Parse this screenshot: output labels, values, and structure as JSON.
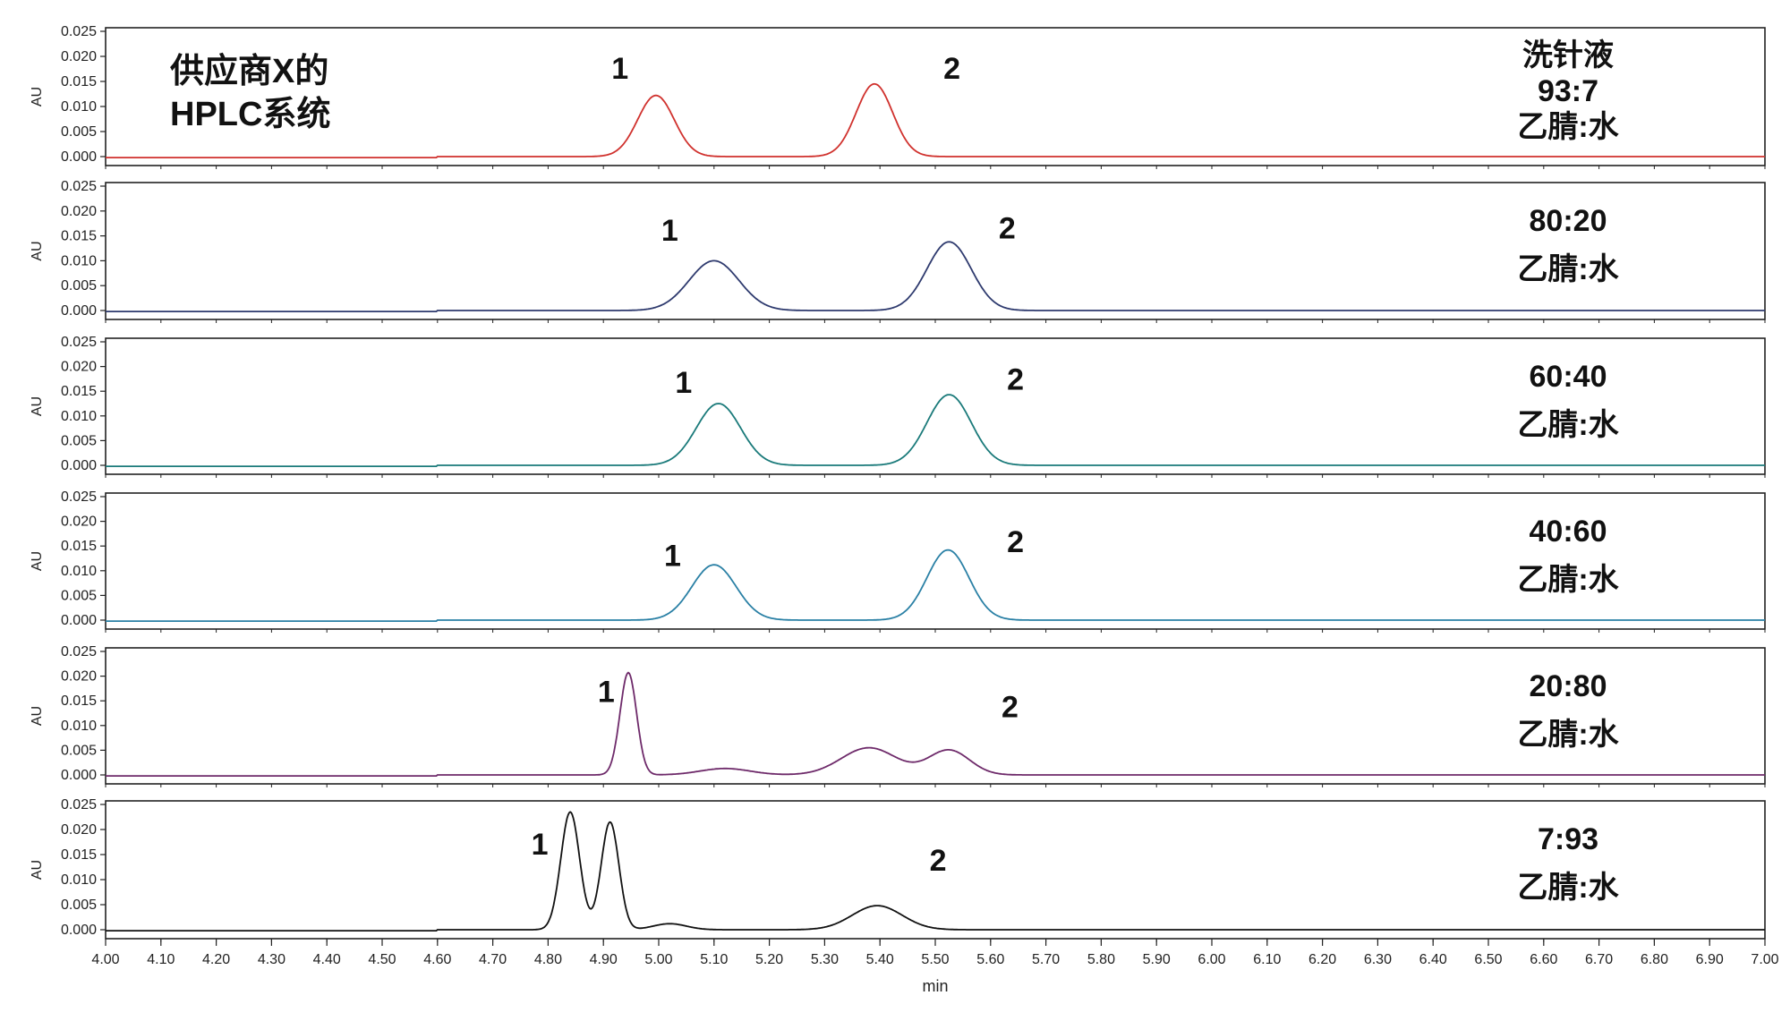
{
  "chart_data": {
    "type": "line",
    "xlabel": "min",
    "ylabel": "AU",
    "xlim": [
      4.0,
      7.0
    ],
    "ylim": [
      -0.001,
      0.025
    ],
    "x_ticks": [
      "4.00",
      "4.10",
      "4.20",
      "4.30",
      "4.40",
      "4.50",
      "4.60",
      "4.70",
      "4.80",
      "4.90",
      "5.00",
      "5.10",
      "5.20",
      "5.30",
      "5.40",
      "5.50",
      "5.60",
      "5.70",
      "5.80",
      "5.90",
      "6.00",
      "6.10",
      "6.20",
      "6.30",
      "6.40",
      "6.50",
      "6.60",
      "6.70",
      "6.80",
      "6.90",
      "7.00"
    ],
    "y_ticks": [
      "0.025",
      "0.020",
      "0.015",
      "0.010",
      "0.005",
      "0.000"
    ],
    "panel_title": [
      "供应商X的",
      "HPLC系统"
    ],
    "panels": [
      {
        "color": "#d0312d",
        "label_lines": [
          "洗针液",
          "93:7",
          "乙腈:水"
        ],
        "peaks": [
          {
            "label": "1",
            "rt": 4.995,
            "height": 0.0122,
            "width": 0.033
          },
          {
            "label": "2",
            "rt": 5.39,
            "height": 0.0145,
            "width": 0.033
          }
        ],
        "baseline": 0.0,
        "peak_labels": [
          {
            "text": "1",
            "x": 4.93,
            "y": 0.0155
          },
          {
            "text": "2",
            "x": 5.53,
            "y": 0.0155
          }
        ]
      },
      {
        "color": "#2e3a6e",
        "label_lines": [
          "80:20",
          "乙腈:水"
        ],
        "peaks": [
          {
            "label": "1",
            "rt": 5.1,
            "height": 0.01,
            "width": 0.045
          },
          {
            "label": "2",
            "rt": 5.525,
            "height": 0.0138,
            "width": 0.04
          }
        ],
        "baseline": 0.0,
        "peak_labels": [
          {
            "text": "1",
            "x": 5.02,
            "y": 0.014
          },
          {
            "text": "2",
            "x": 5.63,
            "y": 0.0145
          }
        ]
      },
      {
        "color": "#1a7a7a",
        "label_lines": [
          "60:40",
          "乙腈:水"
        ],
        "peaks": [
          {
            "label": "1",
            "rt": 5.108,
            "height": 0.0125,
            "width": 0.04
          },
          {
            "label": "2",
            "rt": 5.525,
            "height": 0.0143,
            "width": 0.04
          }
        ],
        "baseline": 0.0,
        "peak_labels": [
          {
            "text": "1",
            "x": 5.045,
            "y": 0.0147
          },
          {
            "text": "2",
            "x": 5.645,
            "y": 0.0153
          }
        ]
      },
      {
        "color": "#2a80a5",
        "label_lines": [
          "40:60",
          "乙腈:水"
        ],
        "peaks": [
          {
            "label": "1",
            "rt": 5.1,
            "height": 0.0112,
            "width": 0.04
          },
          {
            "label": "2",
            "rt": 5.523,
            "height": 0.0142,
            "width": 0.038
          }
        ],
        "baseline": 0.0,
        "peak_labels": [
          {
            "text": "1",
            "x": 5.025,
            "y": 0.011
          },
          {
            "text": "2",
            "x": 5.645,
            "y": 0.0138
          }
        ]
      },
      {
        "color": "#6e2a6a",
        "label_lines": [
          "20:80",
          "乙腈:水"
        ],
        "peaks": [
          {
            "label": "1",
            "rt": 4.945,
            "height": 0.0207,
            "width": 0.015
          },
          {
            "label": "",
            "rt": 5.12,
            "height": 0.0013,
            "width": 0.045
          },
          {
            "label": "",
            "rt": 5.38,
            "height": 0.0055,
            "width": 0.05
          },
          {
            "label": "2",
            "rt": 5.525,
            "height": 0.005,
            "width": 0.037
          }
        ],
        "baseline": 0.0,
        "peak_labels": [
          {
            "text": "1",
            "x": 4.905,
            "y": 0.0148
          },
          {
            "text": "2",
            "x": 5.635,
            "y": 0.0117
          }
        ]
      },
      {
        "color": "#111111",
        "label_lines": [
          "7:93",
          "乙腈:水"
        ],
        "peaks": [
          {
            "label": "1",
            "rt": 4.84,
            "height": 0.0235,
            "width": 0.017
          },
          {
            "label": "",
            "rt": 4.912,
            "height": 0.0215,
            "width": 0.016
          },
          {
            "label": "",
            "rt": 5.02,
            "height": 0.0012,
            "width": 0.03
          },
          {
            "label": "2",
            "rt": 5.395,
            "height": 0.0048,
            "width": 0.045
          }
        ],
        "baseline": 0.0,
        "peak_labels": [
          {
            "text": "1",
            "x": 4.785,
            "y": 0.015
          },
          {
            "text": "2",
            "x": 5.505,
            "y": 0.0118
          }
        ]
      }
    ]
  }
}
